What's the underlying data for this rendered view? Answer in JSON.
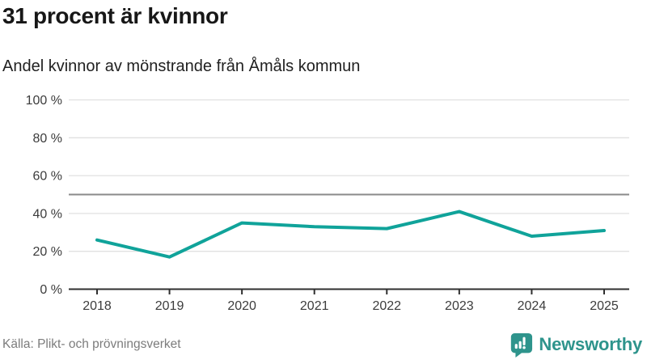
{
  "header": {
    "title": "31 procent är kvinnor",
    "subtitle": "Andel kvinnor av mönstrande från Åmåls kommun"
  },
  "footer": {
    "source": "Källa: Plikt- och prövningsverket",
    "brand": "Newsworthy"
  },
  "colors": {
    "line": "#10a39a",
    "grid": "#e0e0e0",
    "reference": "#8a8a8a",
    "axis": "#2f2f2f",
    "tick": "#3c3c3c",
    "brand": "#2e948c"
  },
  "chart_data": {
    "type": "line",
    "title": "31 procent är kvinnor",
    "subtitle": "Andel kvinnor av mönstrande från Åmåls kommun",
    "x": [
      2018,
      2019,
      2020,
      2021,
      2022,
      2023,
      2024,
      2025
    ],
    "series": [
      {
        "name": "Andel kvinnor av mönstrande",
        "values": [
          26,
          17,
          35,
          33,
          32,
          41,
          28,
          31
        ]
      }
    ],
    "xlabel": "",
    "ylabel": "",
    "ylim": [
      0,
      100
    ],
    "yticks": [
      0,
      20,
      40,
      60,
      80,
      100
    ],
    "ytick_suffix": " %",
    "reference_line": 50,
    "grid": true,
    "legend": "none"
  }
}
